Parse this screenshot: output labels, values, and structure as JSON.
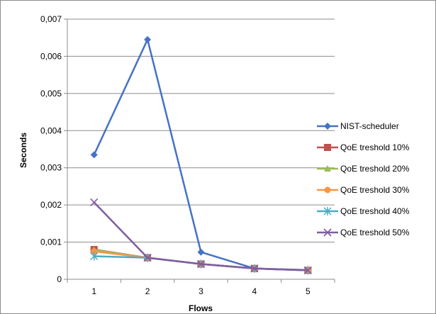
{
  "chart_data": {
    "type": "line",
    "title": "",
    "xlabel": "Flows",
    "ylabel": "Seconds",
    "x": [
      1,
      2,
      3,
      4,
      5
    ],
    "x_tick_labels": [
      "1",
      "2",
      "3",
      "4",
      "5"
    ],
    "ylim": [
      0,
      0.007
    ],
    "y_ticks": [
      0,
      0.001,
      0.002,
      0.003,
      0.004,
      0.005,
      0.006,
      0.007
    ],
    "y_tick_labels": [
      "0",
      "0,001",
      "0,002",
      "0,003",
      "0,004",
      "0,005",
      "0,006",
      "0,007"
    ],
    "grid": "horizontal",
    "legend_position": "right",
    "series": [
      {
        "name": "NIST-scheduler",
        "marker": "diamond",
        "color": "#4572C4",
        "values": [
          0.00335,
          0.00645,
          0.00073,
          0.00029,
          0.00025
        ]
      },
      {
        "name": "QoE treshold 10%",
        "marker": "square",
        "color": "#C0504D",
        "values": [
          0.0008,
          0.00058,
          0.00041,
          0.00029,
          0.00024
        ]
      },
      {
        "name": "QoE treshold 20%",
        "marker": "triangle",
        "color": "#9BBB59",
        "values": [
          0.00079,
          0.00058,
          0.00041,
          0.00029,
          0.00024
        ]
      },
      {
        "name": "QoE treshold 30%",
        "marker": "circle",
        "color": "#F79646",
        "values": [
          0.00075,
          0.00058,
          0.00041,
          0.00029,
          0.00024
        ]
      },
      {
        "name": "QoE treshold 40%",
        "marker": "asterisk",
        "color": "#4BACC6",
        "values": [
          0.00062,
          0.00058,
          0.00041,
          0.00029,
          0.00024
        ]
      },
      {
        "name": "QoE treshold 50%",
        "marker": "x",
        "color": "#7F5DA3",
        "values": [
          0.00207,
          0.00058,
          0.00041,
          0.00029,
          0.00024
        ]
      }
    ]
  }
}
